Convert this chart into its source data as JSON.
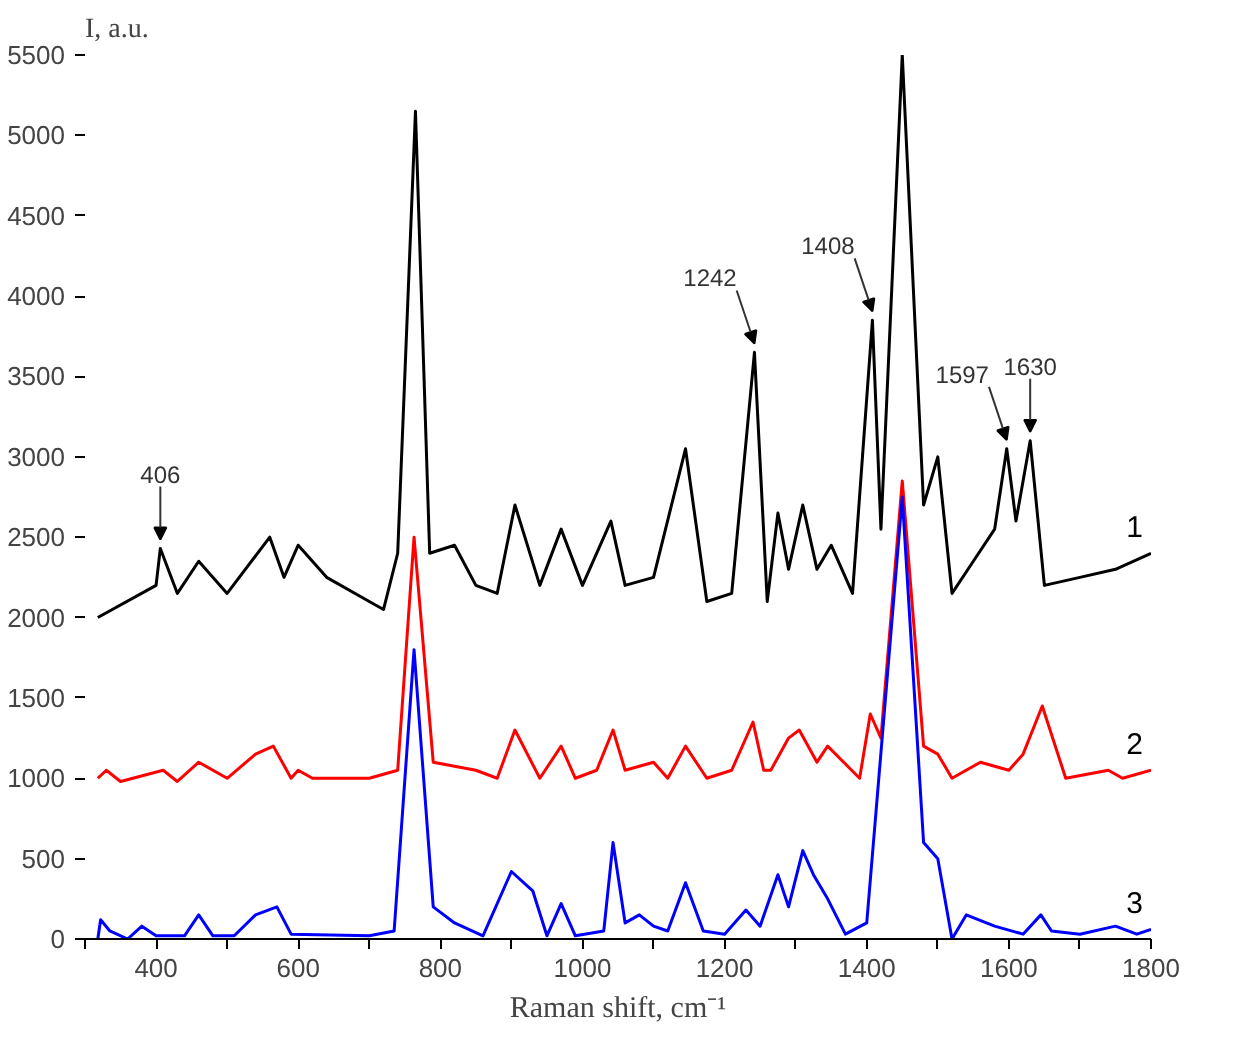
{
  "chart_data": {
    "type": "line",
    "xlabel": "Raman shift, cm⁻¹",
    "ylabel": "I, a.u.",
    "xlim": [
      300,
      1800
    ],
    "ylim": [
      0,
      5500
    ],
    "xticks": [
      {
        "value": 300,
        "label": null
      },
      400,
      {
        "value": 500,
        "label": null
      },
      600,
      {
        "value": 700,
        "label": null
      },
      800,
      {
        "value": 900,
        "label": null
      },
      1000,
      {
        "value": 1100,
        "label": null
      },
      1200,
      {
        "value": 1300,
        "label": null
      },
      1400,
      {
        "value": 1500,
        "label": null
      },
      1600,
      {
        "value": 1700,
        "label": null
      },
      1800
    ],
    "yticks": [
      0,
      500,
      1000,
      1500,
      2000,
      2500,
      3000,
      3500,
      4000,
      4500,
      5000,
      5500
    ],
    "grid": false,
    "legend": false,
    "marker": "none",
    "line_style": "solid",
    "series": [
      {
        "name": "1",
        "color": "#000000",
        "x": [
          318,
          400,
          406,
          430,
          460,
          500,
          560,
          580,
          600,
          640,
          700,
          720,
          740,
          765,
          785,
          820,
          850,
          880,
          905,
          940,
          970,
          1000,
          1040,
          1060,
          1100,
          1145,
          1175,
          1210,
          1242,
          1260,
          1275,
          1290,
          1310,
          1330,
          1350,
          1380,
          1408,
          1420,
          1450,
          1480,
          1500,
          1520,
          1550,
          1580,
          1597,
          1610,
          1630,
          1650,
          1700,
          1750,
          1800
        ],
        "values": [
          2000,
          2200,
          2430,
          2150,
          2350,
          2150,
          2500,
          2250,
          2450,
          2250,
          2100,
          2050,
          2400,
          5150,
          2400,
          2450,
          2200,
          2150,
          2700,
          2200,
          2550,
          2200,
          2600,
          2200,
          2250,
          3050,
          2100,
          2150,
          3650,
          2100,
          2650,
          2300,
          2700,
          2300,
          2450,
          2150,
          3850,
          2550,
          5500,
          2700,
          3000,
          2150,
          2350,
          2550,
          3050,
          2600,
          3100,
          2200,
          2250,
          2300,
          2400
        ]
      },
      {
        "name": "2",
        "color": "#ff0000",
        "x": [
          318,
          330,
          350,
          410,
          430,
          460,
          500,
          540,
          565,
          590,
          600,
          620,
          700,
          740,
          763,
          790,
          850,
          880,
          905,
          940,
          970,
          990,
          1020,
          1043,
          1060,
          1100,
          1120,
          1145,
          1175,
          1210,
          1240,
          1255,
          1265,
          1290,
          1305,
          1330,
          1345,
          1390,
          1405,
          1420,
          1450,
          1480,
          1500,
          1520,
          1560,
          1600,
          1620,
          1647,
          1680,
          1740,
          1760,
          1800
        ],
        "values": [
          1000,
          1050,
          980,
          1050,
          980,
          1100,
          1000,
          1150,
          1200,
          1000,
          1050,
          1000,
          1000,
          1050,
          2500,
          1100,
          1050,
          1000,
          1300,
          1000,
          1200,
          1000,
          1050,
          1300,
          1050,
          1100,
          1000,
          1200,
          1000,
          1050,
          1350,
          1050,
          1050,
          1250,
          1300,
          1100,
          1200,
          1000,
          1400,
          1250,
          2850,
          1200,
          1150,
          1000,
          1100,
          1050,
          1150,
          1450,
          1000,
          1050,
          1000,
          1050
        ]
      },
      {
        "name": "3",
        "color": "#0000ff",
        "x": [
          318,
          322,
          335,
          360,
          380,
          400,
          440,
          460,
          480,
          510,
          540,
          570,
          590,
          700,
          735,
          763,
          790,
          820,
          860,
          900,
          930,
          950,
          970,
          990,
          1030,
          1043,
          1060,
          1080,
          1100,
          1120,
          1145,
          1170,
          1200,
          1230,
          1250,
          1275,
          1290,
          1310,
          1325,
          1345,
          1370,
          1400,
          1450,
          1480,
          1500,
          1520,
          1540,
          1580,
          1620,
          1645,
          1660,
          1700,
          1750,
          1780,
          1800
        ],
        "values": [
          0,
          120,
          50,
          0,
          80,
          20,
          20,
          150,
          20,
          20,
          150,
          200,
          30,
          20,
          50,
          1800,
          200,
          100,
          20,
          420,
          300,
          20,
          220,
          20,
          50,
          600,
          100,
          150,
          80,
          50,
          350,
          50,
          30,
          180,
          80,
          400,
          200,
          550,
          400,
          250,
          30,
          100,
          2750,
          600,
          500,
          0,
          150,
          80,
          30,
          150,
          50,
          30,
          80,
          30,
          60
        ]
      }
    ],
    "annotations": [
      {
        "text": "406",
        "x": 406,
        "y": 2430
      },
      {
        "text": "1242",
        "x": 1242,
        "y": 3650
      },
      {
        "text": "1408",
        "x": 1408,
        "y": 3850
      },
      {
        "text": "1597",
        "x": 1597,
        "y": 3050
      },
      {
        "text": "1630",
        "x": 1630,
        "y": 3100
      }
    ]
  }
}
